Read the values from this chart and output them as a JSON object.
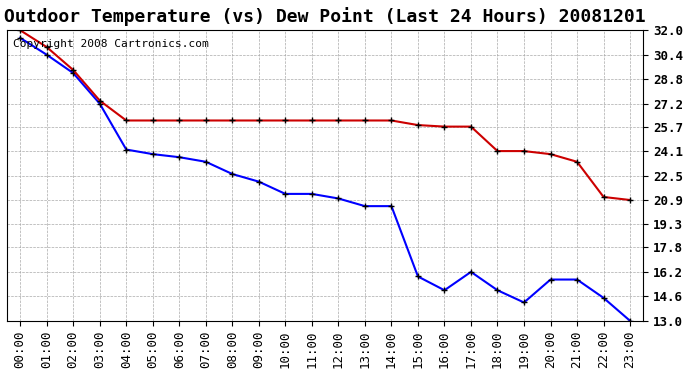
{
  "title": "Outdoor Temperature (vs) Dew Point (Last 24 Hours) 20081201",
  "copyright_text": "Copyright 2008 Cartronics.com",
  "x_labels": [
    "00:00",
    "01:00",
    "02:00",
    "03:00",
    "04:00",
    "05:00",
    "06:00",
    "07:00",
    "08:00",
    "09:00",
    "10:00",
    "11:00",
    "12:00",
    "13:00",
    "14:00",
    "15:00",
    "16:00",
    "17:00",
    "18:00",
    "19:00",
    "20:00",
    "21:00",
    "22:00",
    "23:00"
  ],
  "temp_data": [
    31.5,
    30.4,
    29.2,
    27.2,
    24.2,
    23.9,
    23.7,
    23.4,
    22.6,
    22.1,
    21.3,
    21.3,
    21.0,
    20.5,
    20.5,
    15.9,
    15.0,
    16.2,
    15.0,
    14.2,
    15.7,
    15.7,
    14.5,
    13.0
  ],
  "dew_data": [
    32.0,
    30.9,
    29.4,
    27.4,
    26.1,
    26.1,
    26.1,
    26.1,
    26.1,
    26.1,
    26.1,
    26.1,
    26.1,
    26.1,
    26.1,
    25.8,
    25.7,
    25.7,
    24.1,
    24.1,
    23.9,
    23.4,
    21.1,
    20.9
  ],
  "temp_color": "#0000ff",
  "dew_color": "#cc0000",
  "marker_color": "#000000",
  "bg_color": "#ffffff",
  "grid_color": "#aaaaaa",
  "ylim_min": 13.0,
  "ylim_max": 32.0,
  "yticks": [
    13.0,
    14.6,
    16.2,
    17.8,
    19.3,
    20.9,
    22.5,
    24.1,
    25.7,
    27.2,
    28.8,
    30.4,
    32.0
  ],
  "title_fontsize": 13,
  "copyright_fontsize": 8,
  "tick_fontsize": 9,
  "line_width": 1.5,
  "marker_size": 4
}
